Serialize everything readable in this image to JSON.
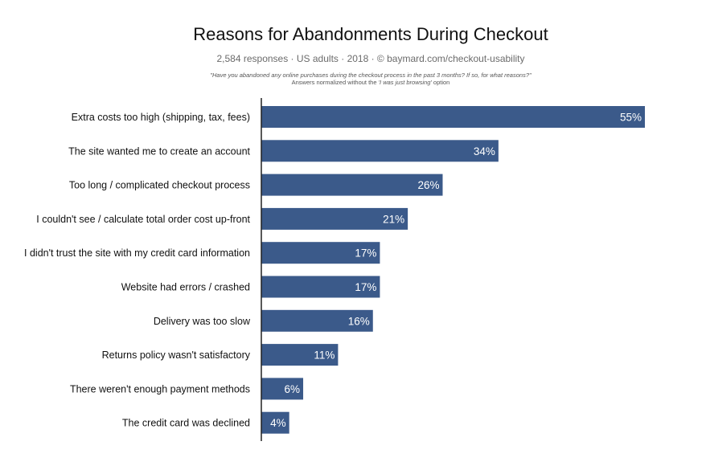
{
  "title": "Reasons for Abandonments During Checkout",
  "subtitle": "2,584 responses  ·  US adults  ·  2018  ·  ©  baymard.com/checkout-usability",
  "notes": {
    "question": "\"Have you abandoned any online purchases during the checkout process in the past 3 months? If so, for what reasons?\"",
    "normalized_prefix": "Answers normalized without the ",
    "normalized_em": "'I was just browsing'",
    "normalized_suffix": " option"
  },
  "colors": {
    "bar": "#3b5a8a",
    "bar_label": "#ffffff",
    "axis": "#222222",
    "category_label": "#111111"
  },
  "chart_data": {
    "type": "bar",
    "orientation": "horizontal",
    "categories": [
      "Extra costs too high (shipping, tax, fees)",
      "The site wanted me to create an account",
      "Too long / complicated checkout process",
      "I couldn't see / calculate total order cost up-front",
      "I didn't trust the site with my credit card information",
      "Website had errors / crashed",
      "Delivery was too slow",
      "Returns policy wasn't satisfactory",
      "There weren't enough payment methods",
      "The credit card was declined"
    ],
    "values": [
      55,
      34,
      26,
      21,
      17,
      17,
      16,
      11,
      6,
      4
    ],
    "value_labels": [
      "55%",
      "34%",
      "26%",
      "21%",
      "17%",
      "17%",
      "16%",
      "11%",
      "6%",
      "4%"
    ],
    "unit": "%",
    "xlim": [
      0,
      55
    ],
    "grid": false
  }
}
